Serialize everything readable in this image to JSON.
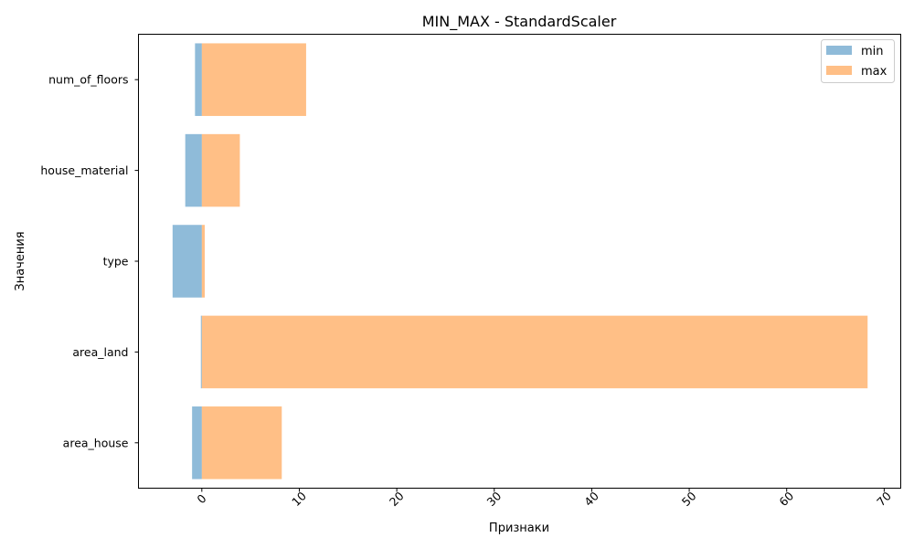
{
  "chart_data": {
    "type": "bar",
    "orientation": "horizontal",
    "title": "MIN_MAX - StandardScaler",
    "xlabel": "Признаки",
    "ylabel": "Значения",
    "categories": [
      "area_house",
      "area_land",
      "type",
      "house_material",
      "num_of_floors"
    ],
    "series": [
      {
        "name": "min",
        "color": "#1f77b4",
        "opacity": 0.5,
        "values": [
          -1.0,
          -0.1,
          -3.0,
          -1.7,
          -0.7
        ]
      },
      {
        "name": "max",
        "color": "#ff7f0e",
        "opacity": 0.5,
        "values": [
          8.2,
          68.3,
          0.3,
          3.9,
          10.7
        ]
      }
    ],
    "xlim": [
      -6.5,
      71.7
    ],
    "xticks": [
      0,
      10,
      20,
      30,
      40,
      50,
      60,
      70
    ],
    "xtick_rotation": 45,
    "grid": false,
    "legend_position": "top-right"
  }
}
